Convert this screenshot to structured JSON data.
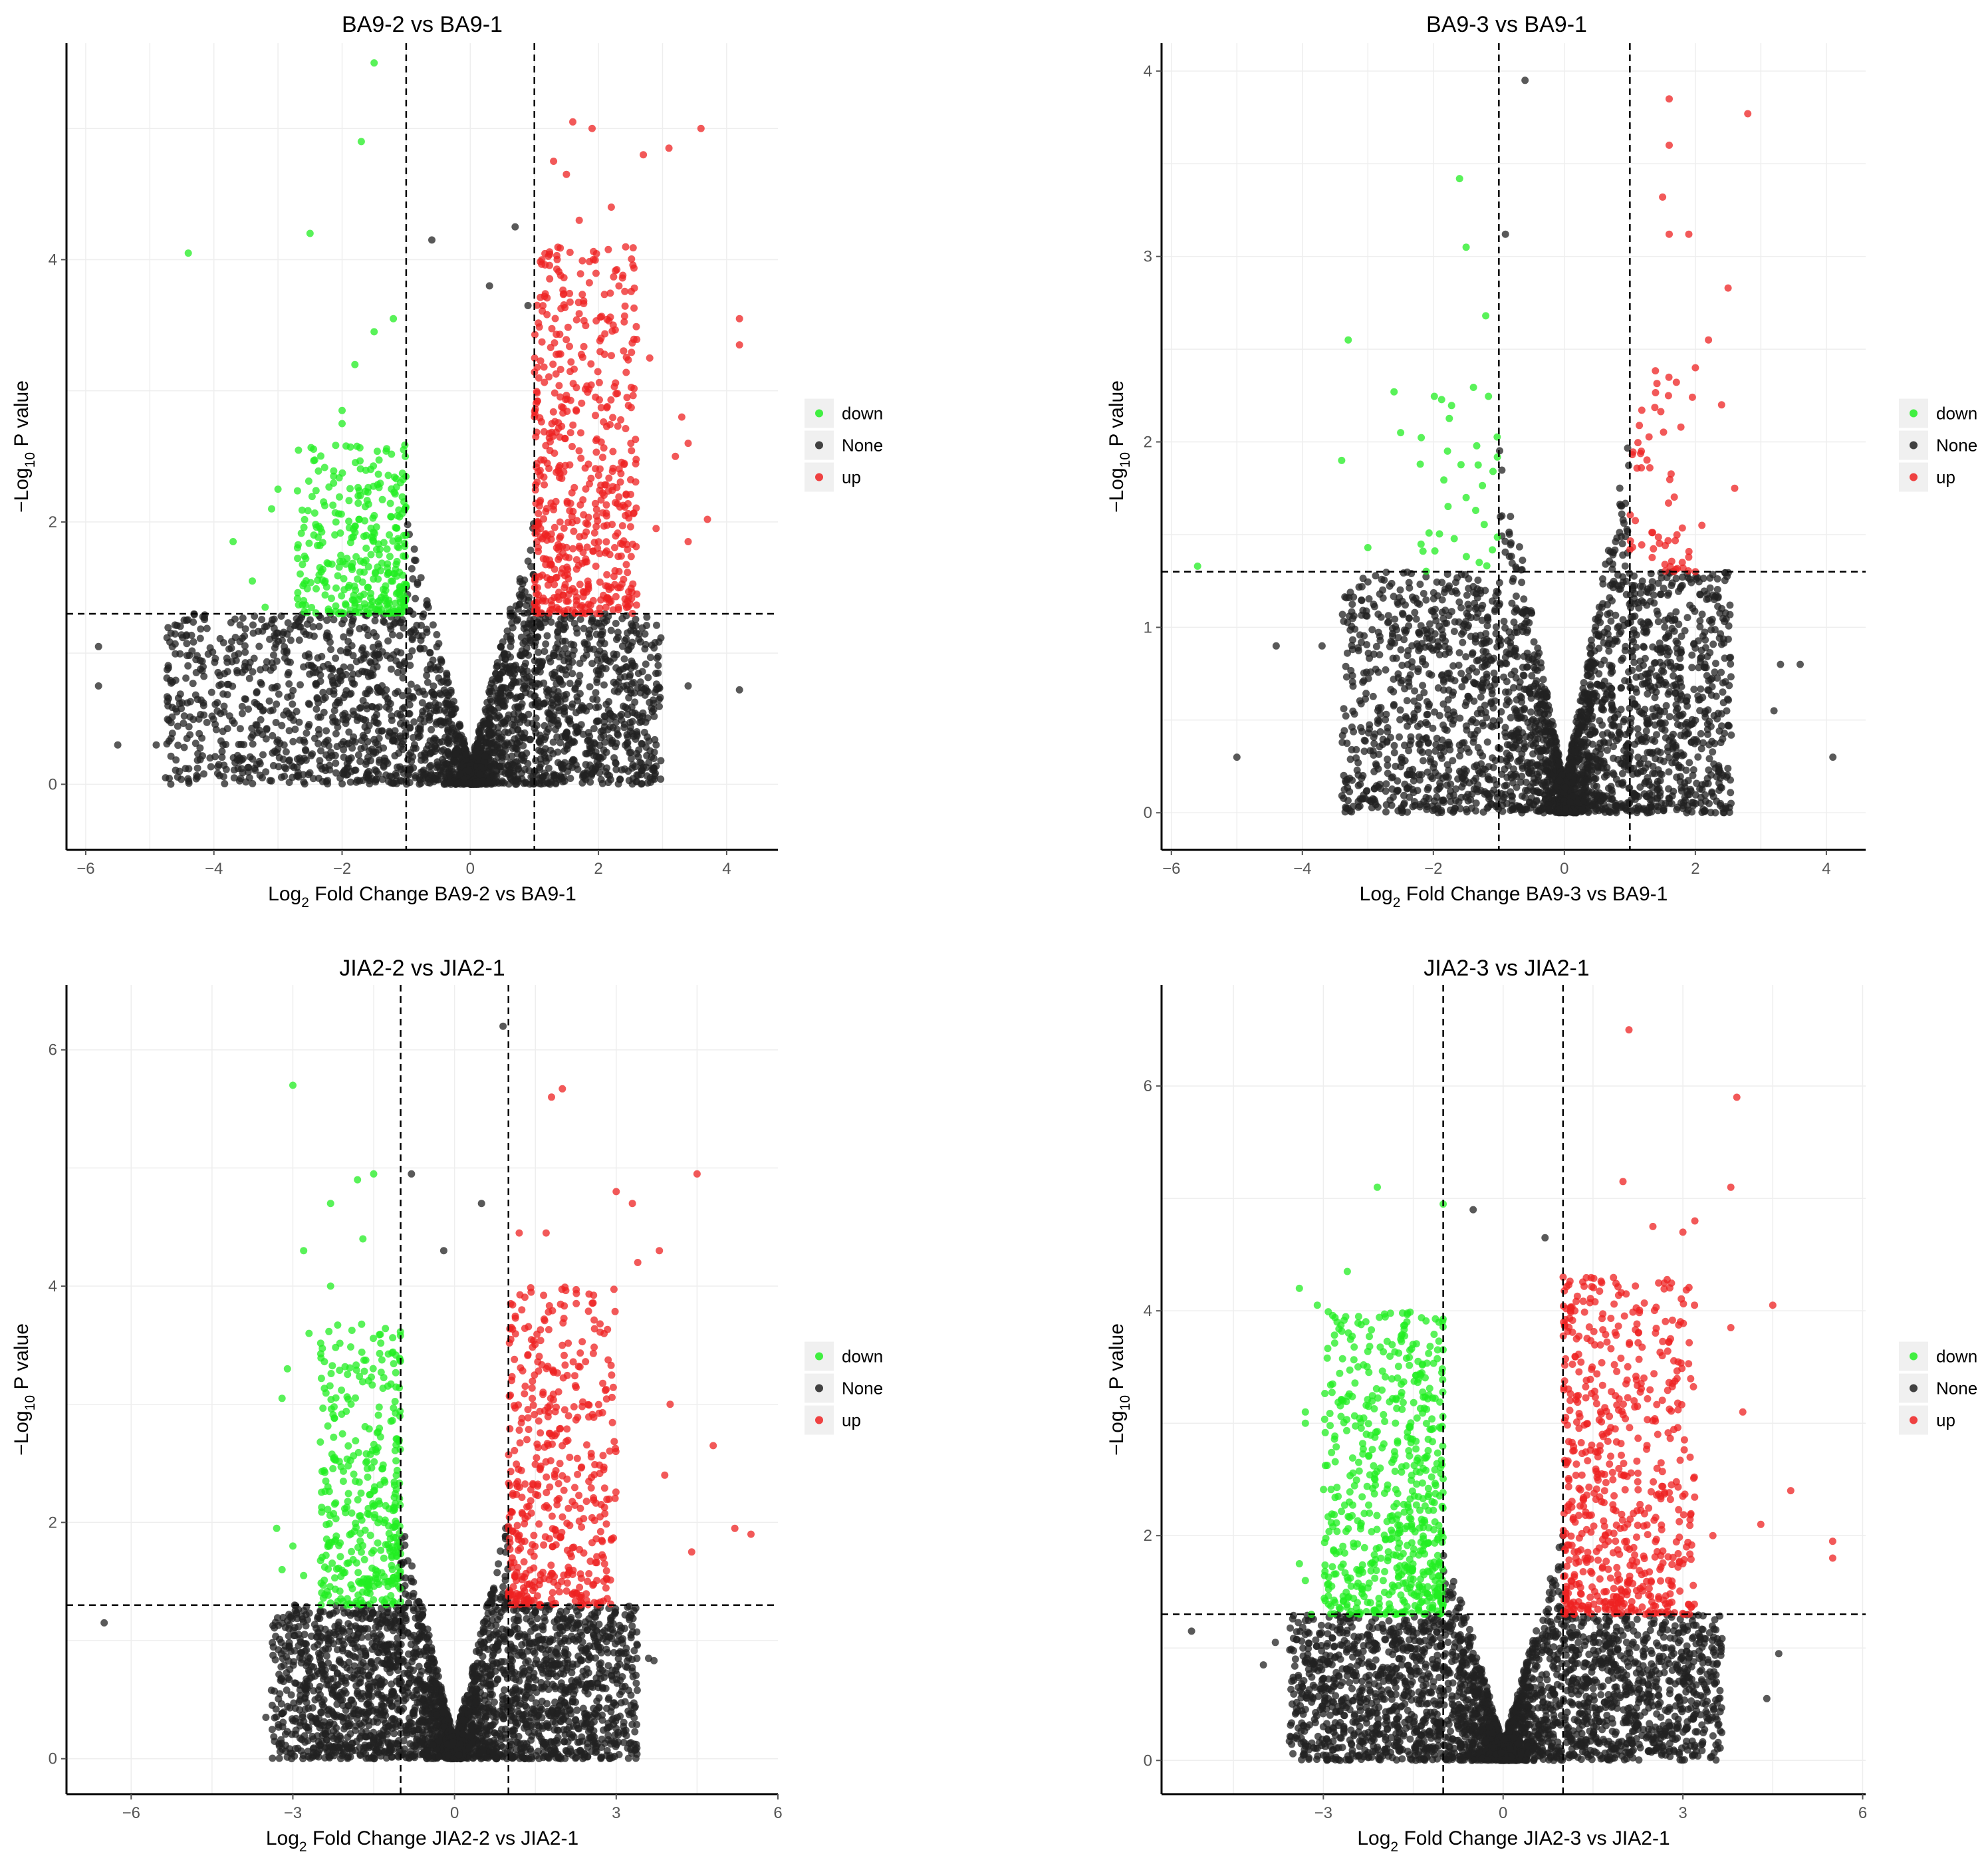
{
  "colors": {
    "down": "#22ee22",
    "none": "#222222",
    "up": "#ee2222",
    "dashed": "#000000",
    "grid": "#eeeeee",
    "legend_key_bg": "#f0f0f0"
  },
  "legend": {
    "position": "right",
    "items": [
      {
        "key": "down",
        "label": "down"
      },
      {
        "key": "none",
        "label": "None"
      },
      {
        "key": "up",
        "label": "up"
      }
    ]
  },
  "chart_data": [
    {
      "type": "scatter",
      "title": "BA9-2 vs BA9-1",
      "xlabel": "Log₂ Fold Change BA9-2 vs BA9-1",
      "xlabel_parts": [
        "Log",
        "2",
        " Fold Change BA9-2 vs BA9-1"
      ],
      "ylabel": "−Log₁₀ P value",
      "ylabel_parts": [
        "−Log",
        "10",
        " P value"
      ],
      "xlim": [
        -6.3,
        4.8
      ],
      "ylim": [
        -0.5,
        5.65
      ],
      "xticks": [
        -6,
        -4,
        -2,
        0,
        2,
        4
      ],
      "xtick_labels": [
        "−6",
        "−4",
        "−2",
        "0",
        "2",
        "4"
      ],
      "yticks": [
        0,
        2,
        4
      ],
      "ytick_labels": [
        "0",
        "2",
        "4"
      ],
      "vlines": [
        -1,
        1
      ],
      "hline": 1.3,
      "grid": true,
      "series": [
        {
          "name": "down",
          "points": [
            [
              -1.5,
              5.5
            ],
            [
              -1.7,
              4.9
            ],
            [
              -2.5,
              4.2
            ],
            [
              -4.4,
              4.05
            ],
            [
              -1.2,
              3.55
            ],
            [
              -1.5,
              3.45
            ],
            [
              -1.8,
              3.2
            ],
            [
              -2.0,
              2.85
            ],
            [
              -2.0,
              2.75
            ],
            [
              -3.0,
              2.25
            ],
            [
              -3.1,
              2.1
            ],
            [
              -3.7,
              1.85
            ],
            [
              -3.4,
              1.55
            ],
            [
              -3.2,
              1.35
            ],
            [
              -2.6,
              1.4
            ],
            [
              -1.6,
              1.5
            ]
          ],
          "cloud": {
            "n": 330,
            "xmin": -2.7,
            "xmax": -1.0,
            "ymin": 1.3,
            "ymax": 2.6
          }
        },
        {
          "name": "None",
          "points": [
            [
              -0.6,
              4.15
            ],
            [
              0.7,
              4.25
            ],
            [
              0.3,
              3.8
            ],
            [
              0.9,
              3.65
            ],
            [
              -5.8,
              0.75
            ],
            [
              -5.5,
              0.3
            ],
            [
              -4.9,
              0.3
            ],
            [
              -5.8,
              1.05
            ],
            [
              3.4,
              0.75
            ],
            [
              4.2,
              0.72
            ],
            [
              2.9,
              0.3
            ],
            [
              2.6,
              0.4
            ]
          ],
          "cloud": {
            "n": 2600,
            "xmin": -5.6,
            "xmax": 3.5,
            "ymin": 0.0,
            "ymax": 3.5,
            "shape": "volcano"
          }
        },
        {
          "name": "up",
          "points": [
            [
              1.6,
              5.05
            ],
            [
              1.9,
              5.0
            ],
            [
              3.6,
              5.0
            ],
            [
              3.1,
              4.85
            ],
            [
              2.7,
              4.8
            ],
            [
              1.3,
              4.75
            ],
            [
              1.5,
              4.65
            ],
            [
              2.2,
              4.4
            ],
            [
              1.7,
              4.3
            ],
            [
              4.2,
              3.55
            ],
            [
              4.2,
              3.35
            ],
            [
              2.8,
              3.25
            ],
            [
              3.3,
              2.8
            ],
            [
              3.4,
              2.6
            ],
            [
              3.2,
              2.5
            ],
            [
              3.7,
              2.02
            ],
            [
              2.9,
              1.95
            ],
            [
              3.4,
              1.85
            ],
            [
              2.2,
              1.5
            ],
            [
              2.6,
              1.45
            ]
          ],
          "cloud": {
            "n": 560,
            "xmin": 1.0,
            "xmax": 2.6,
            "ymin": 1.3,
            "ymax": 4.1
          }
        }
      ]
    },
    {
      "type": "scatter",
      "title": "BA9-3 vs BA9-1",
      "xlabel": "Log₂ Fold Change BA9-3 vs BA9-1",
      "xlabel_parts": [
        "Log",
        "2",
        " Fold Change BA9-3 vs BA9-1"
      ],
      "ylabel": "−Log₁₀ P value",
      "ylabel_parts": [
        "−Log",
        "10",
        " P value"
      ],
      "xlim": [
        -6.15,
        4.6
      ],
      "ylim": [
        -0.2,
        4.15
      ],
      "xticks": [
        -6,
        -4,
        -2,
        0,
        2,
        4
      ],
      "xtick_labels": [
        "−6",
        "−4",
        "−2",
        "0",
        "2",
        "4"
      ],
      "yticks": [
        0,
        1,
        2,
        3,
        4
      ],
      "ytick_labels": [
        "0",
        "1",
        "2",
        "3",
        "4"
      ],
      "vlines": [
        -1,
        1
      ],
      "hline": 1.3,
      "grid": true,
      "series": [
        {
          "name": "down",
          "points": [
            [
              -1.6,
              3.42
            ],
            [
              -1.5,
              3.05
            ],
            [
              -1.2,
              2.68
            ],
            [
              -3.3,
              2.55
            ],
            [
              -2.6,
              2.27
            ],
            [
              -2.5,
              2.05
            ],
            [
              -3.4,
              1.9
            ],
            [
              -2.2,
              1.88
            ],
            [
              -3.0,
              1.43
            ],
            [
              -5.6,
              1.33
            ],
            [
              -1.3,
              1.35
            ],
            [
              -1.5,
              1.7
            ]
          ],
          "cloud": {
            "n": 30,
            "xmin": -2.2,
            "xmax": -1.0,
            "ymin": 1.3,
            "ymax": 2.4
          }
        },
        {
          "name": "None",
          "points": [
            [
              -0.6,
              3.95
            ],
            [
              -0.9,
              3.12
            ],
            [
              -5.0,
              0.3
            ],
            [
              -4.4,
              0.9
            ],
            [
              -3.7,
              0.9
            ],
            [
              4.1,
              0.3
            ],
            [
              3.6,
              0.8
            ],
            [
              3.3,
              0.8
            ],
            [
              3.2,
              0.55
            ]
          ],
          "cloud": {
            "n": 2800,
            "xmin": -4.0,
            "xmax": 3.0,
            "ymin": 0.0,
            "ymax": 2.6,
            "shape": "volcano"
          }
        },
        {
          "name": "up",
          "points": [
            [
              1.6,
              3.85
            ],
            [
              2.8,
              3.77
            ],
            [
              1.6,
              3.6
            ],
            [
              1.5,
              3.32
            ],
            [
              1.9,
              3.12
            ],
            [
              1.6,
              3.12
            ],
            [
              2.5,
              2.83
            ],
            [
              2.2,
              2.55
            ],
            [
              2.0,
              2.4
            ],
            [
              2.4,
              2.2
            ],
            [
              2.6,
              1.75
            ],
            [
              2.1,
              1.55
            ],
            [
              1.8,
              1.35
            ],
            [
              2.0,
              1.3
            ]
          ],
          "cloud": {
            "n": 55,
            "xmin": 1.0,
            "xmax": 2.0,
            "ymin": 1.3,
            "ymax": 2.45
          }
        }
      ]
    },
    {
      "type": "scatter",
      "title": "JIA2-2 vs JIA2-1",
      "xlabel": "Log₂ Fold Change JIA2-2 vs JIA2-1",
      "xlabel_parts": [
        "Log",
        "2",
        " Fold Change JIA2-2 vs JIA2-1"
      ],
      "ylabel": "−Log₁₀ P value",
      "ylabel_parts": [
        "−Log",
        "10",
        " P value"
      ],
      "xlim": [
        -7.2,
        6.0
      ],
      "ylim": [
        -0.3,
        6.55
      ],
      "xticks": [
        -6,
        -3,
        0,
        3,
        6
      ],
      "xtick_labels": [
        "−6",
        "−3",
        "0",
        "3",
        "6"
      ],
      "yticks": [
        0,
        2,
        4,
        6
      ],
      "ytick_labels": [
        "0",
        "2",
        "4",
        "6"
      ],
      "vlines": [
        -1,
        1
      ],
      "hline": 1.3,
      "grid": true,
      "series": [
        {
          "name": "down",
          "points": [
            [
              -3.0,
              5.7
            ],
            [
              -1.8,
              4.9
            ],
            [
              -1.5,
              4.95
            ],
            [
              -2.3,
              4.7
            ],
            [
              -1.7,
              4.4
            ],
            [
              -2.8,
              4.3
            ],
            [
              -2.3,
              4.0
            ],
            [
              -2.7,
              3.6
            ],
            [
              -3.1,
              3.3
            ],
            [
              -3.2,
              3.05
            ],
            [
              -3.3,
              1.95
            ],
            [
              -3.0,
              1.8
            ],
            [
              -3.2,
              1.6
            ],
            [
              -2.8,
              1.55
            ]
          ],
          "cloud": {
            "n": 370,
            "xmin": -2.5,
            "xmax": -1.0,
            "ymin": 1.3,
            "ymax": 3.7
          }
        },
        {
          "name": "None",
          "points": [
            [
              0.9,
              6.2
            ],
            [
              -0.8,
              4.95
            ],
            [
              0.5,
              4.7
            ],
            [
              -0.2,
              4.3
            ],
            [
              -6.5,
              1.15
            ],
            [
              -3.5,
              0.35
            ],
            [
              3.6,
              0.85
            ],
            [
              3.7,
              0.83
            ]
          ],
          "cloud": {
            "n": 3000,
            "xmin": -4.0,
            "xmax": 4.0,
            "ymin": 0.0,
            "ymax": 3.5,
            "shape": "volcano"
          }
        },
        {
          "name": "up",
          "points": [
            [
              1.8,
              5.6
            ],
            [
              2.0,
              5.67
            ],
            [
              4.5,
              4.95
            ],
            [
              3.0,
              4.8
            ],
            [
              3.3,
              4.7
            ],
            [
              3.8,
              4.3
            ],
            [
              3.4,
              4.2
            ],
            [
              1.2,
              4.45
            ],
            [
              1.7,
              4.45
            ],
            [
              4.0,
              3.0
            ],
            [
              4.8,
              2.65
            ],
            [
              3.9,
              2.4
            ],
            [
              5.2,
              1.95
            ],
            [
              5.5,
              1.9
            ],
            [
              4.4,
              1.75
            ]
          ],
          "cloud": {
            "n": 460,
            "xmin": 1.0,
            "xmax": 3.0,
            "ymin": 1.3,
            "ymax": 4.0
          }
        }
      ]
    },
    {
      "type": "scatter",
      "title": "JIA2-3 vs JIA2-1",
      "xlabel": "Log₂ Fold Change JIA2-3 vs JIA2-1",
      "xlabel_parts": [
        "Log",
        "2",
        " Fold Change JIA2-3 vs JIA2-1"
      ],
      "ylabel": "−Log₁₀ P value",
      "ylabel_parts": [
        "−Log",
        "10",
        " P value"
      ],
      "xlim": [
        -5.7,
        6.05
      ],
      "ylim": [
        -0.3,
        6.9
      ],
      "xticks": [
        -3,
        0,
        3,
        6
      ],
      "xtick_labels": [
        "−3",
        "0",
        "3",
        "6"
      ],
      "yticks": [
        0,
        2,
        4,
        6
      ],
      "ytick_labels": [
        "0",
        "2",
        "4",
        "6"
      ],
      "vlines": [
        -1,
        1
      ],
      "hline": 1.3,
      "grid": true,
      "series": [
        {
          "name": "down",
          "points": [
            [
              -2.1,
              5.1
            ],
            [
              -1.0,
              4.95
            ],
            [
              -3.4,
              4.2
            ],
            [
              -2.6,
              4.35
            ],
            [
              -3.1,
              4.05
            ],
            [
              -3.3,
              3.1
            ],
            [
              -3.3,
              3.0
            ],
            [
              -3.4,
              1.75
            ],
            [
              -3.3,
              1.6
            ],
            [
              -3.2,
              1.3
            ]
          ],
          "cloud": {
            "n": 620,
            "xmin": -3.0,
            "xmax": -1.0,
            "ymin": 1.3,
            "ymax": 4.0
          }
        },
        {
          "name": "None",
          "points": [
            [
              -0.5,
              4.9
            ],
            [
              0.7,
              4.65
            ],
            [
              -5.2,
              1.15
            ],
            [
              -4.0,
              0.85
            ],
            [
              -3.8,
              1.05
            ],
            [
              -3.0,
              0.3
            ],
            [
              4.4,
              0.55
            ],
            [
              4.6,
              0.95
            ]
          ],
          "cloud": {
            "n": 3000,
            "xmin": -4.2,
            "xmax": 4.3,
            "ymin": 0.0,
            "ymax": 3.8,
            "shape": "volcano"
          }
        },
        {
          "name": "up",
          "points": [
            [
              2.1,
              6.5
            ],
            [
              3.9,
              5.9
            ],
            [
              3.8,
              5.1
            ],
            [
              2.0,
              5.15
            ],
            [
              3.2,
              4.8
            ],
            [
              2.5,
              4.75
            ],
            [
              3.0,
              4.7
            ],
            [
              4.5,
              4.05
            ],
            [
              3.8,
              3.85
            ],
            [
              4.0,
              3.1
            ],
            [
              3.5,
              2.0
            ],
            [
              4.3,
              2.1
            ],
            [
              4.8,
              2.4
            ],
            [
              5.5,
              1.95
            ],
            [
              5.5,
              1.8
            ]
          ],
          "cloud": {
            "n": 620,
            "xmin": 1.0,
            "xmax": 3.2,
            "ymin": 1.3,
            "ymax": 4.3
          }
        }
      ]
    }
  ]
}
